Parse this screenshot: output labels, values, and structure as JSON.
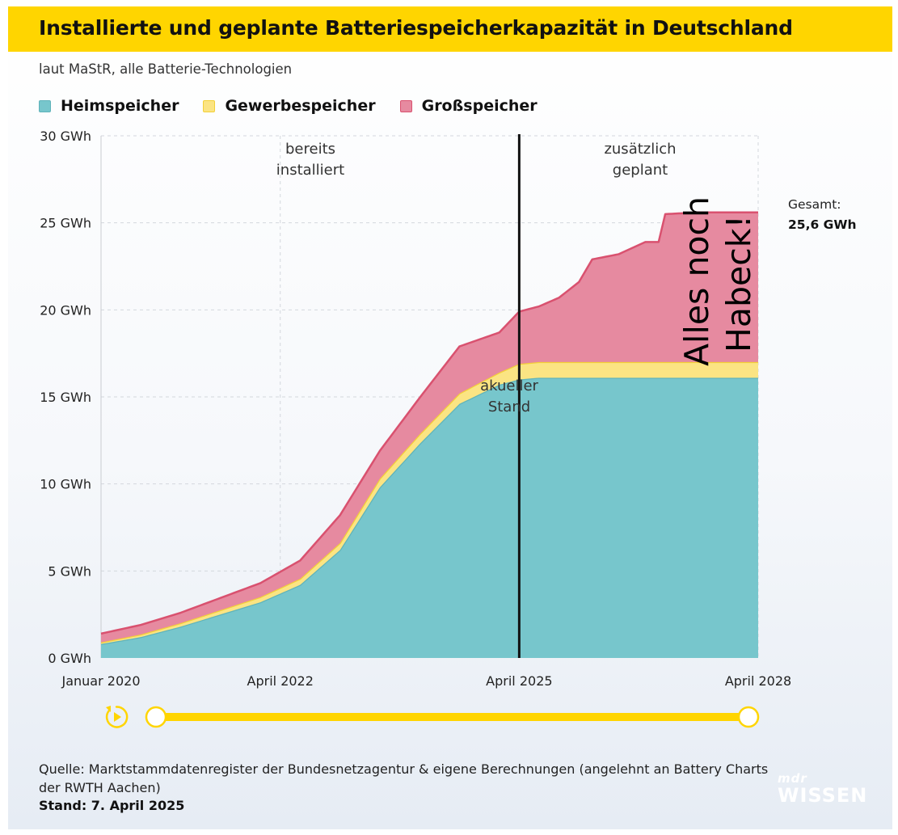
{
  "header": {
    "title": "Installierte und geplante Batteriespeicherkapazität in Deutschland",
    "subtitle": "laut MaStR, alle Batterie-Technologien"
  },
  "colors": {
    "heim": "#77c6cc",
    "heim_edge": "#5fb3ba",
    "gewerbe": "#fbe483",
    "gewerbe_edge": "#f3d037",
    "gross": "#e68aa0",
    "gross_edge": "#d9516f",
    "accent": "#ffd500"
  },
  "chart_data": {
    "type": "area",
    "stacked": true,
    "title": "Installierte und geplante Batteriespeicherkapazität in Deutschland",
    "ylabel": "",
    "xlabel": "",
    "ylim": [
      0,
      30
    ],
    "xlim": [
      0,
      99
    ],
    "x_unit": "months since Januar 2020",
    "y_ticks": [
      "0 GWh",
      "5 GWh",
      "10 GWh",
      "15 GWh",
      "20 GWh",
      "25 GWh",
      "30 GWh"
    ],
    "x_ticks": [
      {
        "x": 0,
        "label": "Januar 2020"
      },
      {
        "x": 27,
        "label": "April 2022"
      },
      {
        "x": 63,
        "label": "April 2025"
      },
      {
        "x": 99,
        "label": "April 2028"
      }
    ],
    "series": [
      {
        "name": "Heimspeicher",
        "x": [
          0,
          6,
          12,
          18,
          24,
          30,
          36,
          42,
          48,
          54,
          60,
          63,
          66,
          72,
          78,
          84,
          90,
          96,
          99
        ],
        "values": [
          0.8,
          1.2,
          1.8,
          2.5,
          3.2,
          4.2,
          6.2,
          9.8,
          12.3,
          14.6,
          15.7,
          16.0,
          16.1,
          16.1,
          16.1,
          16.1,
          16.1,
          16.1,
          16.1
        ]
      },
      {
        "name": "Gewerbespeicher",
        "x": [
          0,
          6,
          12,
          18,
          24,
          30,
          36,
          42,
          48,
          54,
          60,
          63,
          66,
          72,
          78,
          84,
          90,
          96,
          99
        ],
        "values": [
          0.1,
          0.15,
          0.2,
          0.25,
          0.3,
          0.35,
          0.4,
          0.5,
          0.55,
          0.6,
          0.7,
          0.9,
          0.9,
          0.9,
          0.9,
          0.9,
          0.9,
          0.9,
          0.9
        ]
      },
      {
        "name": "Großspeicher",
        "x": [
          0,
          6,
          12,
          18,
          24,
          30,
          36,
          42,
          48,
          54,
          60,
          63,
          66,
          69,
          72,
          74,
          78,
          82,
          84,
          85,
          90,
          96,
          99
        ],
        "values": [
          0.5,
          0.55,
          0.6,
          0.7,
          0.8,
          1.05,
          1.6,
          1.6,
          2.1,
          2.7,
          2.3,
          3.0,
          3.2,
          3.7,
          4.6,
          5.9,
          6.2,
          6.9,
          6.9,
          8.5,
          8.6,
          8.6,
          8.6
        ]
      }
    ],
    "divider": {
      "x": 63
    },
    "annotations": {
      "installed": [
        "bereits",
        "installiert"
      ],
      "planned": [
        "zusätzlich",
        "geplant"
      ],
      "current": [
        "akueller",
        "Stand"
      ],
      "total_label": "Gesamt:",
      "total_value": "25,6 GWh",
      "handwritten": [
        "Alles noch",
        "Habeck!"
      ]
    },
    "legend_position": "top-left"
  },
  "timeline": {
    "progress_start": 0,
    "progress_end": 1
  },
  "footer": {
    "source": "Quelle: Marktstammdatenregister der Bundesnetzagentur & eigene Berechnungen (angelehnt an Battery Charts der RWTH Aachen)",
    "stand": "Stand: 7. April 2025"
  },
  "brand": {
    "top": "mdr",
    "bottom": "WISSEN"
  }
}
